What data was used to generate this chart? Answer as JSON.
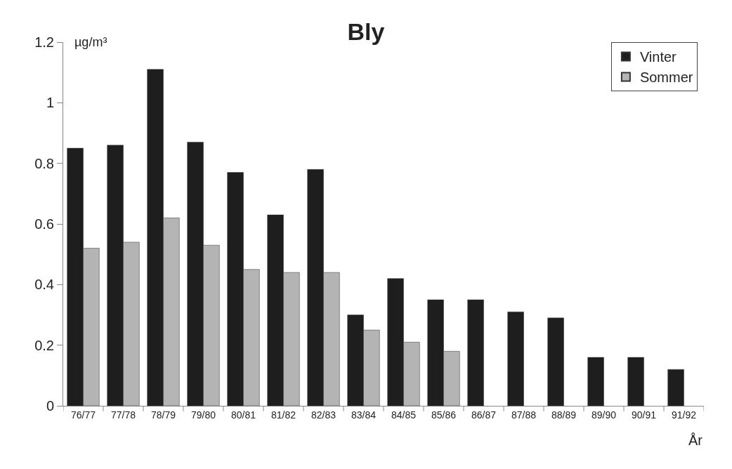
{
  "chart_data": {
    "type": "bar",
    "title": "Bly",
    "ylabel": "µg/m³",
    "xlabel": "År",
    "categories": [
      "76/77",
      "77/78",
      "78/79",
      "79/80",
      "80/81",
      "81/82",
      "82/83",
      "83/84",
      "84/85",
      "85/86",
      "86/87",
      "87/88",
      "88/89",
      "89/90",
      "90/91",
      "91/92"
    ],
    "series": [
      {
        "name": "Vinter",
        "color": "#1e1e1e",
        "values": [
          0.85,
          0.86,
          1.11,
          0.87,
          0.77,
          0.63,
          0.78,
          0.3,
          0.42,
          0.35,
          0.35,
          0.31,
          0.29,
          0.16,
          0.16,
          0.12
        ]
      },
      {
        "name": "Sommer",
        "color": "#b4b4b4",
        "values": [
          0.52,
          0.54,
          0.62,
          0.53,
          0.45,
          0.44,
          0.44,
          0.25,
          0.21,
          0.18,
          null,
          null,
          null,
          null,
          null,
          null
        ]
      }
    ],
    "ylim": [
      0,
      1.2
    ],
    "yticks": [
      0,
      0.2,
      0.4,
      0.6,
      0.8,
      1,
      1.2
    ],
    "legend": "top right"
  }
}
